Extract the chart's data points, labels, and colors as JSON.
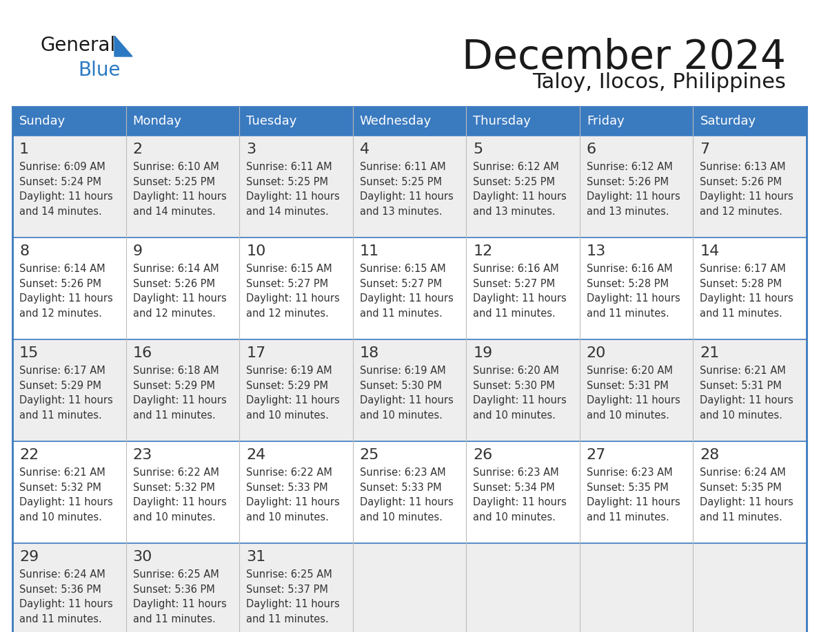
{
  "title": "December 2024",
  "subtitle": "Taloy, Ilocos, Philippines",
  "header_color": "#3a7abf",
  "header_text_color": "#FFFFFF",
  "row_colors": [
    "#eeeeee",
    "#ffffff"
  ],
  "border_color": "#3a7abf",
  "cell_border_color": "#3a7abf",
  "days_of_week": [
    "Sunday",
    "Monday",
    "Tuesday",
    "Wednesday",
    "Thursday",
    "Friday",
    "Saturday"
  ],
  "calendar_data": [
    [
      {
        "day": "1",
        "sunrise": "6:09 AM",
        "sunset": "5:24 PM",
        "daylight_l1": "11 hours",
        "daylight_l2": "and 14 minutes."
      },
      {
        "day": "2",
        "sunrise": "6:10 AM",
        "sunset": "5:25 PM",
        "daylight_l1": "11 hours",
        "daylight_l2": "and 14 minutes."
      },
      {
        "day": "3",
        "sunrise": "6:11 AM",
        "sunset": "5:25 PM",
        "daylight_l1": "11 hours",
        "daylight_l2": "and 14 minutes."
      },
      {
        "day": "4",
        "sunrise": "6:11 AM",
        "sunset": "5:25 PM",
        "daylight_l1": "11 hours",
        "daylight_l2": "and 13 minutes."
      },
      {
        "day": "5",
        "sunrise": "6:12 AM",
        "sunset": "5:25 PM",
        "daylight_l1": "11 hours",
        "daylight_l2": "and 13 minutes."
      },
      {
        "day": "6",
        "sunrise": "6:12 AM",
        "sunset": "5:26 PM",
        "daylight_l1": "11 hours",
        "daylight_l2": "and 13 minutes."
      },
      {
        "day": "7",
        "sunrise": "6:13 AM",
        "sunset": "5:26 PM",
        "daylight_l1": "11 hours",
        "daylight_l2": "and 12 minutes."
      }
    ],
    [
      {
        "day": "8",
        "sunrise": "6:14 AM",
        "sunset": "5:26 PM",
        "daylight_l1": "11 hours",
        "daylight_l2": "and 12 minutes."
      },
      {
        "day": "9",
        "sunrise": "6:14 AM",
        "sunset": "5:26 PM",
        "daylight_l1": "11 hours",
        "daylight_l2": "and 12 minutes."
      },
      {
        "day": "10",
        "sunrise": "6:15 AM",
        "sunset": "5:27 PM",
        "daylight_l1": "11 hours",
        "daylight_l2": "and 12 minutes."
      },
      {
        "day": "11",
        "sunrise": "6:15 AM",
        "sunset": "5:27 PM",
        "daylight_l1": "11 hours",
        "daylight_l2": "and 11 minutes."
      },
      {
        "day": "12",
        "sunrise": "6:16 AM",
        "sunset": "5:27 PM",
        "daylight_l1": "11 hours",
        "daylight_l2": "and 11 minutes."
      },
      {
        "day": "13",
        "sunrise": "6:16 AM",
        "sunset": "5:28 PM",
        "daylight_l1": "11 hours",
        "daylight_l2": "and 11 minutes."
      },
      {
        "day": "14",
        "sunrise": "6:17 AM",
        "sunset": "5:28 PM",
        "daylight_l1": "11 hours",
        "daylight_l2": "and 11 minutes."
      }
    ],
    [
      {
        "day": "15",
        "sunrise": "6:17 AM",
        "sunset": "5:29 PM",
        "daylight_l1": "11 hours",
        "daylight_l2": "and 11 minutes."
      },
      {
        "day": "16",
        "sunrise": "6:18 AM",
        "sunset": "5:29 PM",
        "daylight_l1": "11 hours",
        "daylight_l2": "and 11 minutes."
      },
      {
        "day": "17",
        "sunrise": "6:19 AM",
        "sunset": "5:29 PM",
        "daylight_l1": "11 hours",
        "daylight_l2": "and 10 minutes."
      },
      {
        "day": "18",
        "sunrise": "6:19 AM",
        "sunset": "5:30 PM",
        "daylight_l1": "11 hours",
        "daylight_l2": "and 10 minutes."
      },
      {
        "day": "19",
        "sunrise": "6:20 AM",
        "sunset": "5:30 PM",
        "daylight_l1": "11 hours",
        "daylight_l2": "and 10 minutes."
      },
      {
        "day": "20",
        "sunrise": "6:20 AM",
        "sunset": "5:31 PM",
        "daylight_l1": "11 hours",
        "daylight_l2": "and 10 minutes."
      },
      {
        "day": "21",
        "sunrise": "6:21 AM",
        "sunset": "5:31 PM",
        "daylight_l1": "11 hours",
        "daylight_l2": "and 10 minutes."
      }
    ],
    [
      {
        "day": "22",
        "sunrise": "6:21 AM",
        "sunset": "5:32 PM",
        "daylight_l1": "11 hours",
        "daylight_l2": "and 10 minutes."
      },
      {
        "day": "23",
        "sunrise": "6:22 AM",
        "sunset": "5:32 PM",
        "daylight_l1": "11 hours",
        "daylight_l2": "and 10 minutes."
      },
      {
        "day": "24",
        "sunrise": "6:22 AM",
        "sunset": "5:33 PM",
        "daylight_l1": "11 hours",
        "daylight_l2": "and 10 minutes."
      },
      {
        "day": "25",
        "sunrise": "6:23 AM",
        "sunset": "5:33 PM",
        "daylight_l1": "11 hours",
        "daylight_l2": "and 10 minutes."
      },
      {
        "day": "26",
        "sunrise": "6:23 AM",
        "sunset": "5:34 PM",
        "daylight_l1": "11 hours",
        "daylight_l2": "and 10 minutes."
      },
      {
        "day": "27",
        "sunrise": "6:23 AM",
        "sunset": "5:35 PM",
        "daylight_l1": "11 hours",
        "daylight_l2": "and 11 minutes."
      },
      {
        "day": "28",
        "sunrise": "6:24 AM",
        "sunset": "5:35 PM",
        "daylight_l1": "11 hours",
        "daylight_l2": "and 11 minutes."
      }
    ],
    [
      {
        "day": "29",
        "sunrise": "6:24 AM",
        "sunset": "5:36 PM",
        "daylight_l1": "11 hours",
        "daylight_l2": "and 11 minutes."
      },
      {
        "day": "30",
        "sunrise": "6:25 AM",
        "sunset": "5:36 PM",
        "daylight_l1": "11 hours",
        "daylight_l2": "and 11 minutes."
      },
      {
        "day": "31",
        "sunrise": "6:25 AM",
        "sunset": "5:37 PM",
        "daylight_l1": "11 hours",
        "daylight_l2": "and 11 minutes."
      },
      null,
      null,
      null,
      null
    ]
  ]
}
